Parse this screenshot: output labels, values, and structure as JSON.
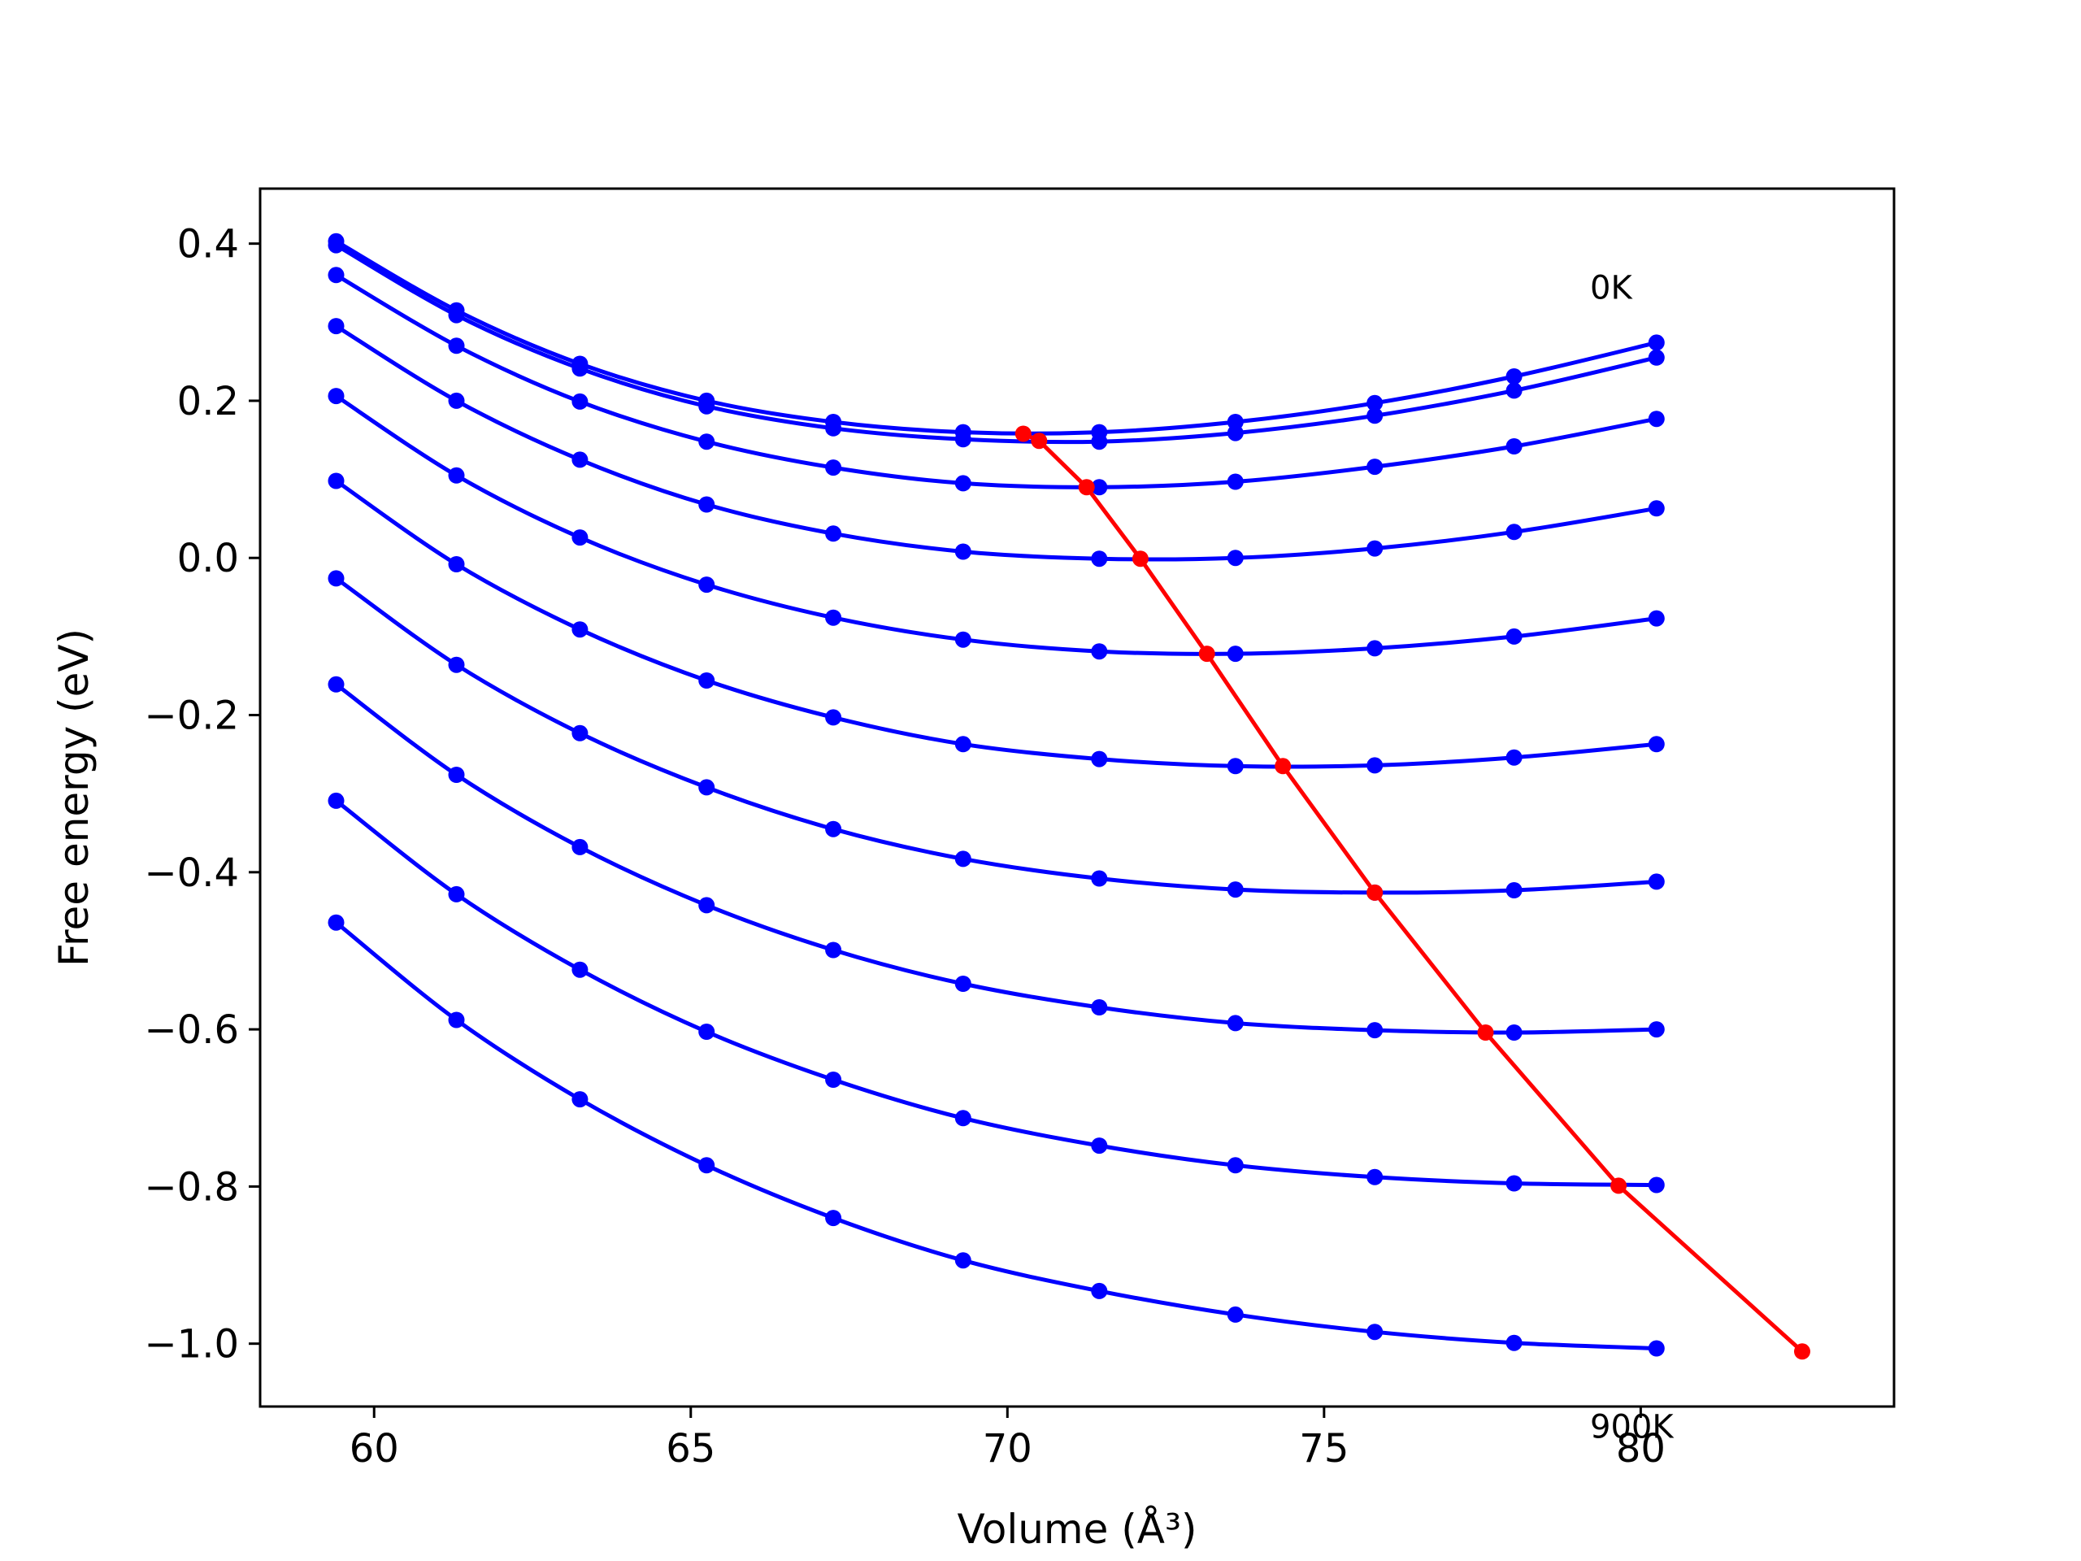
{
  "chart_data": {
    "type": "line",
    "title": "",
    "xlabel": "Volume (Å³)",
    "ylabel": "Free energy (eV)",
    "xlim": [
      58.2,
      84.0
    ],
    "ylim": [
      -1.08,
      0.47
    ],
    "xticks": [
      60,
      65,
      70,
      75,
      80
    ],
    "yticks": [
      0.4,
      0.2,
      0.0,
      -0.2,
      -0.4,
      -0.6,
      -0.8,
      -1.0
    ],
    "xtick_labels": [
      "60",
      "65",
      "70",
      "75",
      "80"
    ],
    "ytick_labels": [
      "0.4",
      "0.2",
      "0.0",
      "−0.2",
      "−0.4",
      "−0.6",
      "−0.8",
      "−1.0"
    ],
    "grid": false,
    "legend": "none",
    "annotations": [
      {
        "text": "0K",
        "x": 79.2,
        "y": 0.33
      },
      {
        "text": "900K",
        "x": 79.2,
        "y": -1.12
      }
    ],
    "x": [
      59.4,
      61.3,
      63.25,
      65.25,
      67.25,
      69.3,
      71.45,
      73.6,
      75.8,
      78.0,
      80.25
    ],
    "series": [
      {
        "color": "#0000ff",
        "values": [
          0.403,
          0.315,
          0.247,
          0.2,
          0.173,
          0.16,
          0.16,
          0.173,
          0.197,
          0.231,
          0.274
        ]
      },
      {
        "color": "#0000ff",
        "values": [
          0.398,
          0.309,
          0.241,
          0.193,
          0.165,
          0.151,
          0.148,
          0.159,
          0.181,
          0.213,
          0.255
        ]
      },
      {
        "color": "#0000ff",
        "values": [
          0.36,
          0.27,
          0.199,
          0.148,
          0.115,
          0.095,
          0.09,
          0.097,
          0.116,
          0.142,
          0.177
        ]
      },
      {
        "color": "#0000ff",
        "values": [
          0.295,
          0.2,
          0.125,
          0.068,
          0.031,
          0.008,
          -0.001,
          0.0,
          0.012,
          0.033,
          0.063
        ]
      },
      {
        "color": "#0000ff",
        "values": [
          0.206,
          0.105,
          0.026,
          -0.034,
          -0.076,
          -0.104,
          -0.119,
          -0.122,
          -0.115,
          -0.1,
          -0.077
        ]
      },
      {
        "color": "#0000ff",
        "values": [
          0.098,
          -0.008,
          -0.091,
          -0.156,
          -0.203,
          -0.237,
          -0.256,
          -0.265,
          -0.264,
          -0.254,
          -0.237
        ]
      },
      {
        "color": "#0000ff",
        "values": [
          -0.026,
          -0.136,
          -0.223,
          -0.292,
          -0.345,
          -0.383,
          -0.408,
          -0.422,
          -0.426,
          -0.423,
          -0.412
        ]
      },
      {
        "color": "#0000ff",
        "values": [
          -0.161,
          -0.276,
          -0.368,
          -0.442,
          -0.499,
          -0.542,
          -0.572,
          -0.592,
          -0.601,
          -0.604,
          -0.6
        ]
      },
      {
        "color": "#0000ff",
        "values": [
          -0.309,
          -0.428,
          -0.524,
          -0.603,
          -0.664,
          -0.713,
          -0.748,
          -0.773,
          -0.788,
          -0.796,
          -0.798
        ]
      },
      {
        "color": "#0000ff",
        "values": [
          -0.464,
          -0.588,
          -0.689,
          -0.773,
          -0.84,
          -0.894,
          -0.933,
          -0.963,
          -0.985,
          -0.999,
          -1.006
        ]
      }
    ],
    "minima_series": {
      "color": "#ff0000",
      "x": [
        70.25,
        70.5,
        71.25,
        72.1,
        73.15,
        74.35,
        75.8,
        77.55,
        79.65,
        82.55
      ],
      "values": [
        0.158,
        0.149,
        0.09,
        -0.001,
        -0.122,
        -0.265,
        -0.426,
        -0.604,
        -0.799,
        -1.01
      ]
    }
  }
}
